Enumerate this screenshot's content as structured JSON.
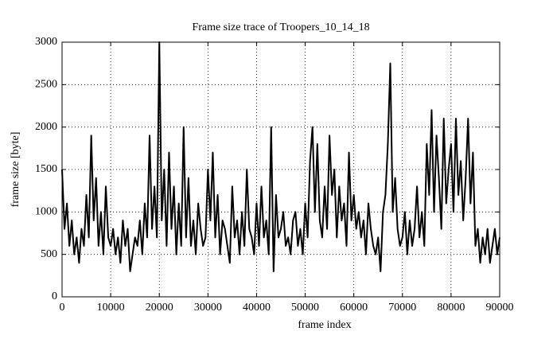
{
  "chart_data": {
    "type": "line",
    "title": "Frame size trace of Troopers_10_14_18",
    "x_label": "frame index",
    "y_label": "frame size [byte]",
    "color": "#000000",
    "grid": true,
    "xlim": [
      0,
      90000
    ],
    "ylim": [
      0,
      3000
    ],
    "xticks": [
      0,
      10000,
      20000,
      30000,
      40000,
      50000,
      60000,
      70000,
      80000,
      90000
    ],
    "yticks": [
      0,
      500,
      1000,
      1500,
      2000,
      2500,
      3000
    ],
    "x": [
      0,
      500,
      1000,
      1500,
      2000,
      2500,
      3000,
      3500,
      4000,
      4500,
      5000,
      5500,
      6000,
      6500,
      7000,
      7500,
      8000,
      8500,
      9000,
      9500,
      10000,
      10500,
      11000,
      11500,
      12000,
      12500,
      13000,
      13500,
      14000,
      14500,
      15000,
      15500,
      16000,
      16500,
      17000,
      17500,
      18000,
      18500,
      19000,
      19500,
      20000,
      20500,
      21000,
      21500,
      22000,
      22500,
      23000,
      23500,
      24000,
      24500,
      25000,
      25500,
      26000,
      26500,
      27000,
      27500,
      28000,
      28500,
      29000,
      29500,
      30000,
      30500,
      31000,
      31500,
      32000,
      32500,
      33000,
      33500,
      34000,
      34500,
      35000,
      35500,
      36000,
      36500,
      37000,
      37500,
      38000,
      38500,
      39000,
      39500,
      40000,
      40500,
      41000,
      41500,
      42000,
      42500,
      43000,
      43500,
      44000,
      44500,
      45000,
      45500,
      46000,
      46500,
      47000,
      47500,
      48000,
      48500,
      49000,
      49500,
      50000,
      50500,
      51000,
      51500,
      52000,
      52500,
      53000,
      53500,
      54000,
      54500,
      55000,
      55500,
      56000,
      56500,
      57000,
      57500,
      58000,
      58500,
      59000,
      59500,
      60000,
      60500,
      61000,
      61500,
      62000,
      62500,
      63000,
      63500,
      64000,
      64500,
      65000,
      65500,
      66000,
      66500,
      67000,
      67500,
      68000,
      68500,
      69000,
      69500,
      70000,
      70500,
      71000,
      71500,
      72000,
      72500,
      73000,
      73500,
      74000,
      74500,
      75000,
      75500,
      76000,
      76500,
      77000,
      77500,
      78000,
      78500,
      79000,
      79500,
      80000,
      80500,
      81000,
      81500,
      82000,
      82500,
      83000,
      83500,
      84000,
      84500,
      85000,
      85500,
      86000,
      86500,
      87000,
      87500,
      88000,
      88500,
      89000,
      89500,
      90000
    ],
    "values": [
      1500,
      800,
      1100,
      600,
      900,
      500,
      700,
      400,
      800,
      600,
      1200,
      700,
      1900,
      900,
      1400,
      600,
      1000,
      500,
      1300,
      700,
      600,
      800,
      500,
      700,
      400,
      900,
      600,
      800,
      300,
      500,
      700,
      600,
      900,
      500,
      1100,
      700,
      1900,
      800,
      1300,
      700,
      3000,
      900,
      1500,
      600,
      1700,
      800,
      1300,
      500,
      1100,
      600,
      2000,
      700,
      1400,
      600,
      900,
      500,
      1100,
      800,
      600,
      700,
      1500,
      900,
      1700,
      700,
      1200,
      500,
      900,
      800,
      600,
      400,
      1300,
      700,
      900,
      500,
      1000,
      600,
      1500,
      800,
      700,
      500,
      1100,
      600,
      1300,
      700,
      900,
      500,
      2000,
      300,
      1200,
      700,
      800,
      1000,
      600,
      700,
      500,
      900,
      1000,
      600,
      800,
      500,
      1100,
      700,
      1600,
      2000,
      1000,
      1800,
      900,
      700,
      1300,
      800,
      1900,
      1200,
      1500,
      700,
      1300,
      900,
      1100,
      600,
      1700,
      900,
      1200,
      800,
      1000,
      700,
      900,
      500,
      1100,
      800,
      600,
      500,
      700,
      300,
      1000,
      1200,
      1800,
      2750,
      1000,
      1400,
      800,
      600,
      700,
      1000,
      500,
      900,
      600,
      800,
      1300,
      700,
      1000,
      600,
      1800,
      1200,
      2200,
      1000,
      1900,
      1400,
      800,
      2100,
      1100,
      1500,
      1800,
      1000,
      2100,
      1200,
      1600,
      900,
      1400,
      2100,
      1100,
      1700,
      600,
      800,
      400,
      700,
      500,
      800,
      400,
      600,
      800,
      500,
      700
    ]
  }
}
